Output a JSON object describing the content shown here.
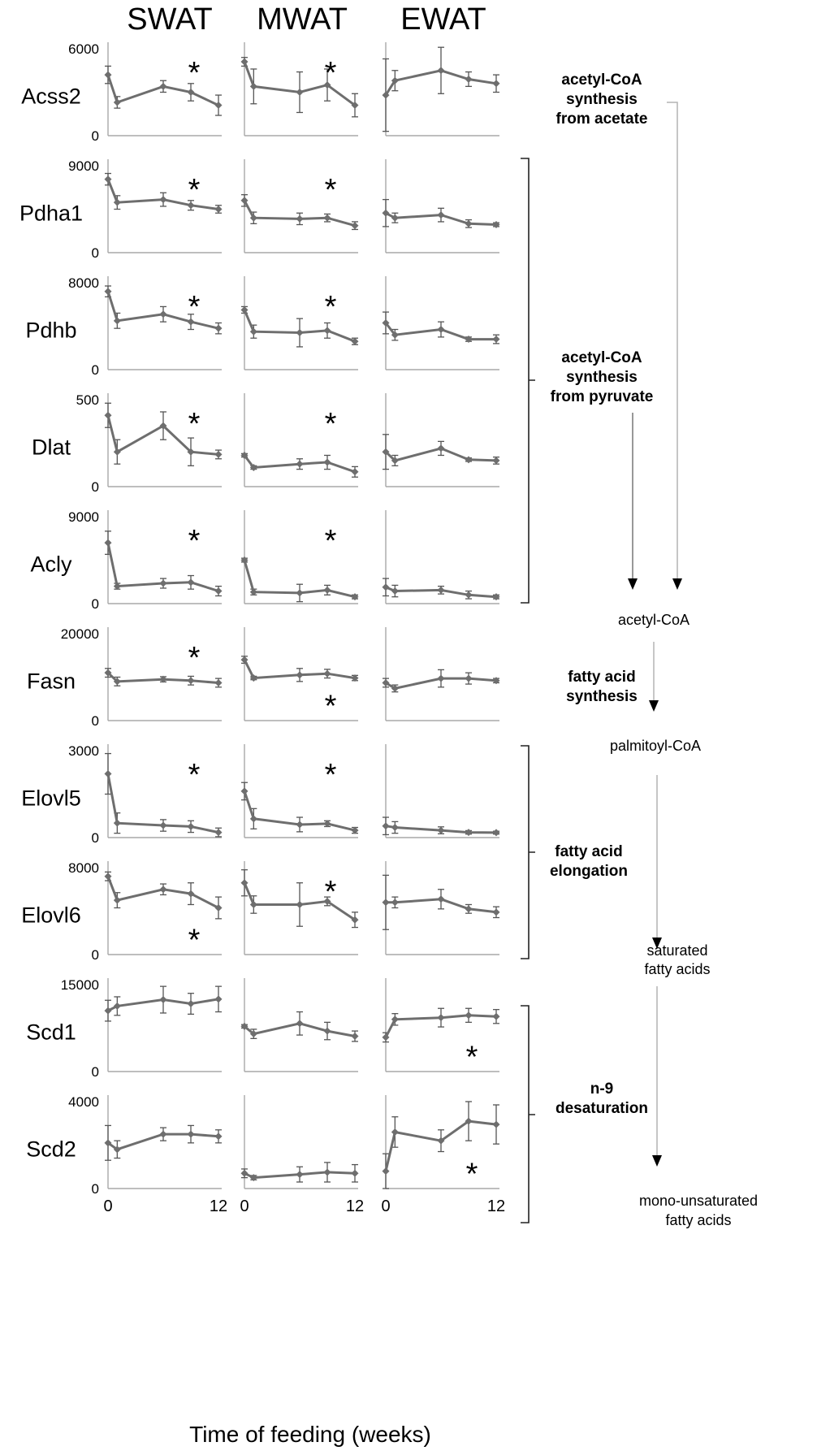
{
  "chart_data": {
    "type": "line",
    "columns": [
      "SWAT",
      "MWAT",
      "EWAT"
    ],
    "xlabel": "Time of feeding (weeks)",
    "xticks": [
      "0",
      "12"
    ],
    "x": [
      0,
      1,
      6,
      9,
      12
    ],
    "rows": [
      {
        "gene": "Acss2",
        "ymax_label": "6000",
        "ymin_label": "0",
        "ylim": [
          0,
          6000
        ],
        "panels": [
          {
            "values": [
              4200,
              2300,
              3400,
              3000,
              2100
            ],
            "errors": [
              600,
              400,
              400,
              600,
              700
            ],
            "star": true,
            "star_pos": "top"
          },
          {
            "values": [
              5100,
              3400,
              3000,
              3500,
              2100
            ],
            "errors": [
              300,
              1200,
              1400,
              1100,
              800
            ],
            "star": true,
            "star_pos": "top"
          },
          {
            "values": [
              2800,
              3800,
              4500,
              3900,
              3600
            ],
            "errors": [
              2500,
              700,
              1600,
              500,
              600
            ],
            "star": false
          }
        ]
      },
      {
        "gene": "Pdha1",
        "ymax_label": "9000",
        "ymin_label": "0",
        "ylim": [
          0,
          9000
        ],
        "panels": [
          {
            "values": [
              7600,
              5200,
              5500,
              4900,
              4500
            ],
            "errors": [
              600,
              700,
              700,
              500,
              400
            ],
            "star": true,
            "star_pos": "top"
          },
          {
            "values": [
              5400,
              3600,
              3500,
              3600,
              2800
            ],
            "errors": [
              600,
              600,
              600,
              400,
              400
            ],
            "star": true,
            "star_pos": "top"
          },
          {
            "values": [
              4100,
              3600,
              3900,
              3000,
              2900
            ],
            "errors": [
              1400,
              500,
              700,
              400,
              200
            ],
            "star": false
          }
        ]
      },
      {
        "gene": "Pdhb",
        "ymax_label": "8000",
        "ymin_label": "0",
        "ylim": [
          0,
          8000
        ],
        "panels": [
          {
            "values": [
              7200,
              4500,
              5100,
              4400,
              3800
            ],
            "errors": [
              500,
              700,
              700,
              700,
              500
            ],
            "star": true,
            "star_pos": "top"
          },
          {
            "values": [
              5500,
              3500,
              3400,
              3600,
              2600
            ],
            "errors": [
              300,
              600,
              1300,
              700,
              300
            ],
            "star": true,
            "star_pos": "top"
          },
          {
            "values": [
              4300,
              3200,
              3700,
              2800,
              2800
            ],
            "errors": [
              1000,
              500,
              700,
              200,
              400
            ],
            "star": false
          }
        ]
      },
      {
        "gene": "Dlat",
        "ymax_label": "500",
        "ymin_label": "0",
        "ylim": [
          0,
          500
        ],
        "panels": [
          {
            "values": [
              410,
              200,
              350,
              200,
              185
            ],
            "errors": [
              70,
              70,
              80,
              80,
              25
            ],
            "star": true,
            "star_pos": "top"
          },
          {
            "values": [
              180,
              110,
              130,
              140,
              85
            ],
            "errors": [
              10,
              10,
              30,
              40,
              30
            ],
            "star": true,
            "star_pos": "top"
          },
          {
            "values": [
              200,
              150,
              220,
              155,
              150
            ],
            "errors": [
              100,
              30,
              40,
              10,
              20
            ],
            "star": false
          }
        ]
      },
      {
        "gene": "Acly",
        "ymax_label": "9000",
        "ymin_label": "0",
        "ylim": [
          0,
          9000
        ],
        "panels": [
          {
            "values": [
              6300,
              1800,
              2100,
              2200,
              1300
            ],
            "errors": [
              1200,
              300,
              500,
              700,
              500
            ],
            "star": true,
            "star_pos": "top"
          },
          {
            "values": [
              4500,
              1200,
              1100,
              1400,
              700
            ],
            "errors": [
              200,
              300,
              900,
              500,
              200
            ],
            "star": true,
            "star_pos": "top"
          },
          {
            "values": [
              1700,
              1300,
              1400,
              900,
              700
            ],
            "errors": [
              900,
              600,
              400,
              400,
              200
            ],
            "star": false
          }
        ]
      },
      {
        "gene": "Fasn",
        "ymax_label": "20000",
        "ymin_label": "0",
        "ylim": [
          0,
          20000
        ],
        "panels": [
          {
            "values": [
              11000,
              9000,
              9500,
              9200,
              8700
            ],
            "errors": [
              1000,
              1000,
              600,
              1000,
              1000
            ],
            "star": true,
            "star_pos": "top"
          },
          {
            "values": [
              14000,
              9800,
              10500,
              10800,
              9800
            ],
            "errors": [
              800,
              400,
              1500,
              1000,
              600
            ],
            "star": true,
            "star_pos": "bottom"
          },
          {
            "values": [
              8700,
              7400,
              9700,
              9700,
              9200
            ],
            "errors": [
              1000,
              800,
              2000,
              1300,
              500
            ],
            "star": false
          }
        ]
      },
      {
        "gene": "Elovl5",
        "ymax_label": "3000",
        "ymin_label": "0",
        "ylim": [
          0,
          3000
        ],
        "panels": [
          {
            "values": [
              2200,
              500,
              420,
              380,
              180
            ],
            "errors": [
              700,
              350,
              200,
              200,
              150
            ],
            "star": true,
            "star_pos": "top"
          },
          {
            "values": [
              1600,
              650,
              450,
              480,
              250
            ],
            "errors": [
              300,
              350,
              250,
              100,
              100
            ],
            "star": true,
            "star_pos": "top"
          },
          {
            "values": [
              400,
              350,
              250,
              180,
              170
            ],
            "errors": [
              300,
              200,
              120,
              60,
              50
            ],
            "star": false
          }
        ]
      },
      {
        "gene": "Elovl6",
        "ymax_label": "8000",
        "ymin_label": "0",
        "ylim": [
          0,
          8000
        ],
        "panels": [
          {
            "values": [
              7200,
              5000,
              6000,
              5600,
              4300
            ],
            "errors": [
              400,
              700,
              500,
              1000,
              1000
            ],
            "star": true,
            "star_pos": "bottom"
          },
          {
            "values": [
              6600,
              4600,
              4600,
              4900,
              3200
            ],
            "errors": [
              1200,
              800,
              2000,
              400,
              700
            ],
            "star": true,
            "star_pos": "top"
          },
          {
            "values": [
              4800,
              4800,
              5100,
              4200,
              3900
            ],
            "errors": [
              2500,
              500,
              900,
              400,
              500
            ],
            "star": false
          }
        ]
      },
      {
        "gene": "Scd1",
        "ymax_label": "15000",
        "ymin_label": "0",
        "ylim": [
          0,
          15000
        ],
        "panels": [
          {
            "values": [
              10500,
              11300,
              12400,
              11700,
              12500
            ],
            "errors": [
              1800,
              1600,
              2300,
              1800,
              2200
            ],
            "star": false
          },
          {
            "values": [
              7800,
              6500,
              8300,
              7000,
              6100
            ],
            "errors": [
              300,
              800,
              2000,
              1500,
              900
            ],
            "star": false
          },
          {
            "values": [
              5900,
              9000,
              9300,
              9700,
              9500
            ],
            "errors": [
              800,
              1000,
              1600,
              1200,
              1200
            ],
            "star": true,
            "star_pos": "bottom"
          }
        ]
      },
      {
        "gene": "Scd2",
        "ymax_label": "4000",
        "ymin_label": "0",
        "ylim": [
          0,
          4000
        ],
        "panels": [
          {
            "values": [
              2100,
              1800,
              2500,
              2500,
              2400
            ],
            "errors": [
              800,
              400,
              300,
              400,
              300
            ],
            "star": false
          },
          {
            "values": [
              700,
              500,
              650,
              750,
              700
            ],
            "errors": [
              200,
              100,
              350,
              450,
              400
            ],
            "star": false
          },
          {
            "values": [
              800,
              2600,
              2200,
              3100,
              2950
            ],
            "errors": [
              800,
              700,
              500,
              900,
              900
            ],
            "star": true,
            "star_pos": "bottom"
          }
        ]
      }
    ],
    "annotations": {
      "star": "*",
      "processes": [
        "acetyl-CoA synthesis from acetate",
        "acetyl-CoA synthesis from pyruvate",
        "fatty acid synthesis",
        "fatty acid elongation",
        "n-9 desaturation"
      ],
      "metabolites": [
        "acetyl-CoA",
        "palmitoyl-CoA",
        "saturated fatty acids",
        "mono-unsaturated fatty acids"
      ]
    }
  },
  "diagram": {
    "acss2": [
      "acetyl-CoA",
      "synthesis",
      "from acetate"
    ],
    "pyruvate": [
      "acetyl-CoA",
      "synthesis",
      "from pyruvate"
    ],
    "acetyl_coa": "acetyl-CoA",
    "fas": [
      "fatty acid",
      "synthesis"
    ],
    "palmitoyl": "palmitoyl-CoA",
    "elong": [
      "fatty acid",
      "elongation"
    ],
    "saturated": [
      "saturated",
      "fatty acids"
    ],
    "desat": [
      "n-9",
      "desaturation"
    ],
    "mufa": [
      "mono-unsaturated",
      "fatty acids"
    ]
  },
  "colors": {
    "series": "#6e6e6e",
    "axis": "#a8a8a8",
    "error": "#555555",
    "arrow_line": "#b4b4b4"
  }
}
